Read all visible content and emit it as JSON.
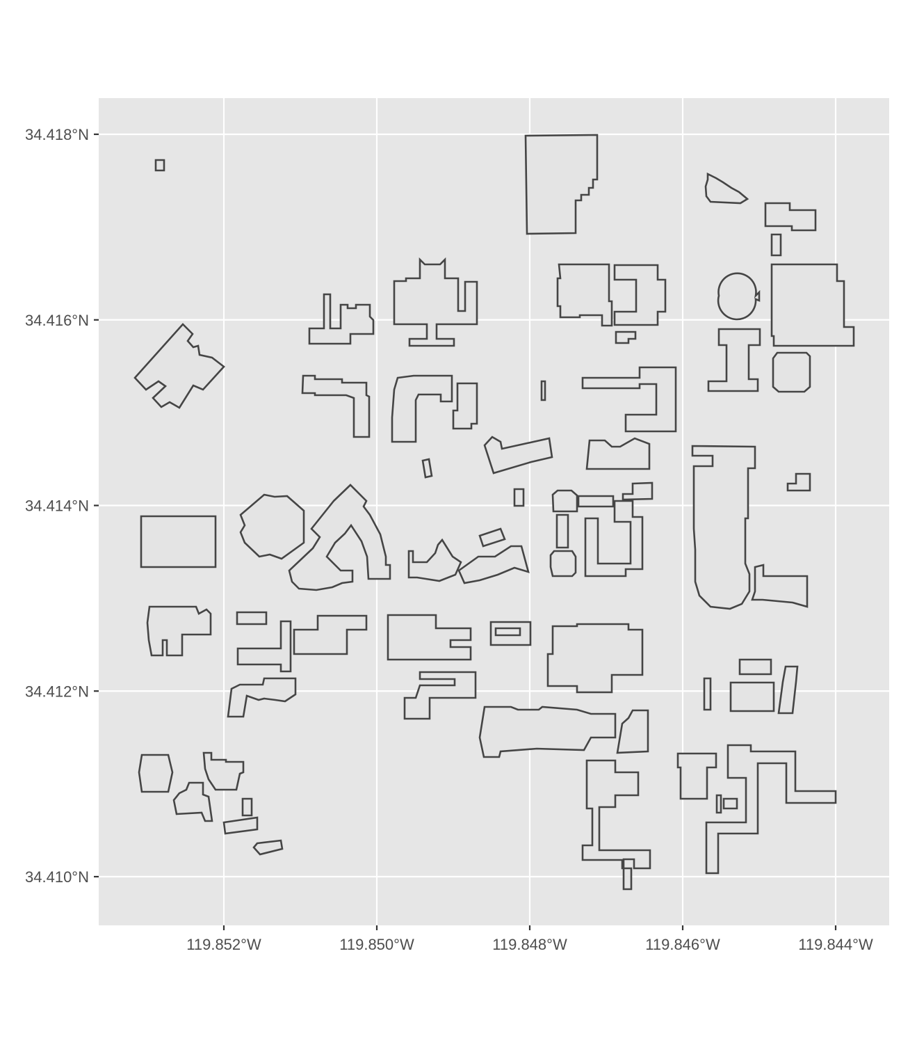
{
  "map": {
    "x_axis": {
      "ticks": [
        {
          "value": -119.852,
          "label": "119.852°W"
        },
        {
          "value": -119.85,
          "label": "119.850°W"
        },
        {
          "value": -119.848,
          "label": "119.848°W"
        },
        {
          "value": -119.846,
          "label": "119.846°W"
        },
        {
          "value": -119.844,
          "label": "119.844°W"
        }
      ]
    },
    "y_axis": {
      "ticks": [
        {
          "value": 34.418,
          "label": "34.418°N"
        },
        {
          "value": 34.416,
          "label": "34.416°N"
        },
        {
          "value": 34.414,
          "label": "34.414°N"
        },
        {
          "value": 34.412,
          "label": "34.412°N"
        },
        {
          "value": 34.41,
          "label": "34.410°N"
        }
      ]
    },
    "colors": {
      "panel_background": "#e6e6e6",
      "grid": "#ffffff",
      "building_fill": "#e4e4e4",
      "building_outline": "#454545"
    },
    "layer": "building footprints"
  }
}
